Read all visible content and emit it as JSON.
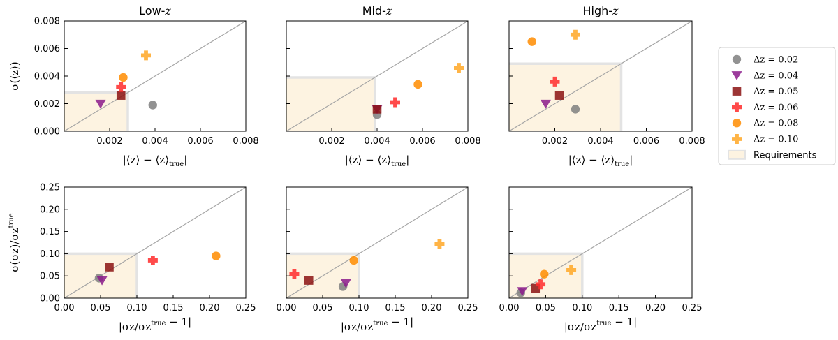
{
  "colors": {
    "dz002": "#7f7f7f",
    "dz004": "#8b1a8b",
    "dz005": "#8b1212",
    "dz006": "#ff2a2a",
    "dz008": "#ff8c00",
    "dz010": "#ffa726",
    "requirement_fill": "#fdf3e1",
    "requirement_edge": "#e3e3e3",
    "identity_line": "#a6a6a6"
  },
  "legend": [
    {
      "key": "dz002",
      "marker": "circle",
      "label": "Δz = 0.02"
    },
    {
      "key": "dz004",
      "marker": "triangle-down",
      "label": "Δz = 0.04"
    },
    {
      "key": "dz005",
      "marker": "square",
      "label": "Δz = 0.05"
    },
    {
      "key": "dz006",
      "marker": "plus",
      "label": "Δz = 0.06"
    },
    {
      "key": "dz008",
      "marker": "circle",
      "label": "Δz = 0.08"
    },
    {
      "key": "dz010",
      "marker": "plus",
      "label": "Δz = 0.10"
    },
    {
      "key": "requirements",
      "marker": "rect",
      "label": "Requirements"
    }
  ],
  "chart_data": [
    {
      "type": "scatter",
      "title": "Low-z",
      "row": 0,
      "col": 0,
      "xlabel": "|⟨z⟩ − ⟨z⟩true|",
      "ylabel": "σ(⟨z⟩)",
      "xlim": [
        0,
        0.008
      ],
      "ylim": [
        0,
        0.008
      ],
      "xticks": [
        "0.002",
        "0.004",
        "0.006",
        "0.008"
      ],
      "yticks": [
        "0.000",
        "0.002",
        "0.004",
        "0.006",
        "0.008"
      ],
      "requirement": [
        0.0028,
        0.0028
      ],
      "points": [
        {
          "series": "dz002",
          "x": 0.0039,
          "y": 0.0019
        },
        {
          "series": "dz004",
          "x": 0.0016,
          "y": 0.002
        },
        {
          "series": "dz005",
          "x": 0.0025,
          "y": 0.0026
        },
        {
          "series": "dz006",
          "x": 0.0025,
          "y": 0.0032
        },
        {
          "series": "dz008",
          "x": 0.0026,
          "y": 0.0039
        },
        {
          "series": "dz010",
          "x": 0.0036,
          "y": 0.0055
        }
      ]
    },
    {
      "type": "scatter",
      "title": "Mid-z",
      "row": 0,
      "col": 1,
      "xlabel": "|⟨z⟩ − ⟨z⟩true|",
      "ylabel": "",
      "xlim": [
        0,
        0.008
      ],
      "ylim": [
        0,
        0.008
      ],
      "xticks": [
        "0.002",
        "0.004",
        "0.006",
        "0.008"
      ],
      "yticks": [],
      "requirement": [
        0.0039,
        0.0039
      ],
      "points": [
        {
          "series": "dz002",
          "x": 0.004,
          "y": 0.0012
        },
        {
          "series": "dz004",
          "x": 0.004,
          "y": 0.0016
        },
        {
          "series": "dz005",
          "x": 0.004,
          "y": 0.0016
        },
        {
          "series": "dz006",
          "x": 0.0048,
          "y": 0.0021
        },
        {
          "series": "dz008",
          "x": 0.0058,
          "y": 0.0034
        },
        {
          "series": "dz010",
          "x": 0.0076,
          "y": 0.0046
        }
      ]
    },
    {
      "type": "scatter",
      "title": "High-z",
      "row": 0,
      "col": 2,
      "xlabel": "|⟨z⟩ − ⟨z⟩true|",
      "ylabel": "",
      "xlim": [
        0,
        0.008
      ],
      "ylim": [
        0,
        0.008
      ],
      "xticks": [
        "0.002",
        "0.004",
        "0.006",
        "0.008"
      ],
      "yticks": [],
      "requirement": [
        0.0049,
        0.0049
      ],
      "points": [
        {
          "series": "dz002",
          "x": 0.0029,
          "y": 0.0016
        },
        {
          "series": "dz004",
          "x": 0.0016,
          "y": 0.002
        },
        {
          "series": "dz005",
          "x": 0.0022,
          "y": 0.0026
        },
        {
          "series": "dz006",
          "x": 0.002,
          "y": 0.0036
        },
        {
          "series": "dz008",
          "x": 0.001,
          "y": 0.0065
        },
        {
          "series": "dz010",
          "x": 0.0029,
          "y": 0.007
        }
      ]
    },
    {
      "type": "scatter",
      "title": "",
      "row": 1,
      "col": 0,
      "xlabel": "|σz/σz^true − 1|",
      "ylabel": "σ(σz)/σz^true",
      "xlim": [
        0,
        0.25
      ],
      "ylim": [
        0,
        0.25
      ],
      "xticks": [
        "0.00",
        "0.05",
        "0.10",
        "0.15",
        "0.20",
        "0.25"
      ],
      "yticks": [
        "0.00",
        "0.05",
        "0.10",
        "0.15",
        "0.20",
        "0.25"
      ],
      "requirement": [
        0.1,
        0.1
      ],
      "points": [
        {
          "series": "dz002",
          "x": 0.048,
          "y": 0.045
        },
        {
          "series": "dz004",
          "x": 0.052,
          "y": 0.04
        },
        {
          "series": "dz005",
          "x": 0.062,
          "y": 0.07
        },
        {
          "series": "dz006",
          "x": 0.122,
          "y": 0.085
        },
        {
          "series": "dz008",
          "x": 0.209,
          "y": 0.095
        }
      ]
    },
    {
      "type": "scatter",
      "title": "",
      "row": 1,
      "col": 1,
      "xlabel": "|σz/σz^true − 1|",
      "ylabel": "",
      "xlim": [
        0,
        0.25
      ],
      "ylim": [
        0,
        0.25
      ],
      "xticks": [
        "0.00",
        "0.05",
        "0.10",
        "0.15",
        "0.20",
        "0.25"
      ],
      "yticks": [],
      "requirement": [
        0.1,
        0.1
      ],
      "points": [
        {
          "series": "dz002",
          "x": 0.078,
          "y": 0.026
        },
        {
          "series": "dz004",
          "x": 0.082,
          "y": 0.034
        },
        {
          "series": "dz005",
          "x": 0.031,
          "y": 0.04
        },
        {
          "series": "dz006",
          "x": 0.011,
          "y": 0.054
        },
        {
          "series": "dz008",
          "x": 0.093,
          "y": 0.085
        },
        {
          "series": "dz010",
          "x": 0.211,
          "y": 0.122
        }
      ]
    },
    {
      "type": "scatter",
      "title": "",
      "row": 1,
      "col": 2,
      "xlabel": "|σz/σz^true − 1|",
      "ylabel": "",
      "xlim": [
        0,
        0.25
      ],
      "ylim": [
        0,
        0.25
      ],
      "xticks": [
        "0.00",
        "0.05",
        "0.10",
        "0.15",
        "0.20",
        "0.25"
      ],
      "yticks": [],
      "requirement": [
        0.1,
        0.1
      ],
      "points": [
        {
          "series": "dz002",
          "x": 0.016,
          "y": 0.012
        },
        {
          "series": "dz004",
          "x": 0.018,
          "y": 0.016
        },
        {
          "series": "dz005",
          "x": 0.036,
          "y": 0.022
        },
        {
          "series": "dz006",
          "x": 0.043,
          "y": 0.031
        },
        {
          "series": "dz008",
          "x": 0.048,
          "y": 0.054
        },
        {
          "series": "dz010",
          "x": 0.085,
          "y": 0.063
        }
      ]
    }
  ]
}
